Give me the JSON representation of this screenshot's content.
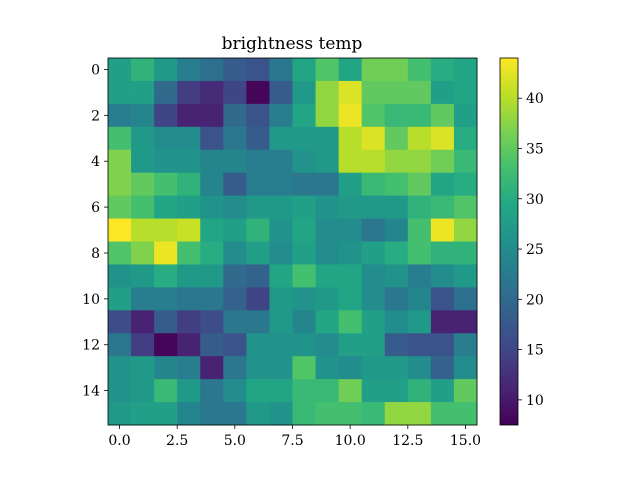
{
  "chart_data": {
    "type": "heatmap",
    "title": "brightness temp",
    "xlabel": "",
    "ylabel": "",
    "colormap": "viridis",
    "vmin": 7.5,
    "vmax": 44,
    "xlim": [
      -0.5,
      15.5
    ],
    "ylim": [
      15.5,
      -0.5
    ],
    "x_ticks": [
      0.0,
      2.5,
      5.0,
      7.5,
      10.0,
      12.5,
      15.0
    ],
    "x_tick_labels": [
      "0.0",
      "2.5",
      "5.0",
      "7.5",
      "10.0",
      "12.5",
      "15.0"
    ],
    "y_ticks": [
      0,
      2,
      4,
      6,
      8,
      10,
      12,
      14
    ],
    "y_tick_labels": [
      "0",
      "2",
      "4",
      "6",
      "8",
      "10",
      "12",
      "14"
    ],
    "colorbar_ticks": [
      10,
      15,
      20,
      25,
      30,
      35,
      40
    ],
    "colorbar_tick_labels": [
      "10",
      "15",
      "20",
      "25",
      "30",
      "35",
      "40"
    ],
    "values": [
      [
        28,
        31,
        27,
        23,
        21,
        18,
        17,
        22,
        29,
        34,
        29,
        36,
        36,
        33,
        30,
        29
      ],
      [
        28,
        28,
        20,
        14,
        12,
        15,
        8,
        18,
        27,
        38,
        42,
        35,
        35,
        35,
        28,
        29
      ],
      [
        23,
        24,
        15,
        11,
        11,
        20,
        17,
        23,
        29,
        38,
        43,
        34,
        32,
        32,
        35,
        28
      ],
      [
        33,
        27,
        25,
        25,
        17,
        22,
        18,
        27,
        27,
        27,
        40,
        42,
        35,
        40,
        42,
        30
      ],
      [
        37,
        27,
        26,
        26,
        24,
        24,
        23,
        23,
        26,
        27,
        40,
        40,
        38,
        38,
        36,
        32
      ],
      [
        37,
        35,
        33,
        31,
        24,
        18,
        23,
        23,
        22,
        22,
        28,
        32,
        33,
        35,
        29,
        30
      ],
      [
        35,
        33,
        29,
        28,
        26,
        25,
        27,
        27,
        28,
        26,
        27,
        27,
        27,
        31,
        32,
        34
      ],
      [
        44,
        40,
        40,
        41,
        29,
        28,
        31,
        26,
        29,
        25,
        25,
        22,
        24,
        33,
        43,
        38
      ],
      [
        34,
        37,
        43,
        33,
        30,
        25,
        28,
        25,
        28,
        25,
        26,
        28,
        30,
        33,
        31,
        31
      ],
      [
        26,
        27,
        30,
        27,
        27,
        20,
        19,
        29,
        33,
        29,
        29,
        25,
        26,
        23,
        25,
        27
      ],
      [
        28,
        23,
        23,
        22,
        22,
        19,
        15,
        27,
        26,
        27,
        29,
        25,
        22,
        24,
        17,
        21
      ],
      [
        16,
        11,
        18,
        14,
        16,
        22,
        22,
        27,
        24,
        29,
        33,
        28,
        25,
        27,
        11,
        11
      ],
      [
        22,
        14,
        8,
        11,
        18,
        17,
        26,
        26,
        26,
        25,
        28,
        28,
        18,
        17,
        17,
        23
      ],
      [
        26,
        27,
        24,
        23,
        11,
        22,
        26,
        26,
        34,
        26,
        25,
        27,
        27,
        25,
        19,
        25
      ],
      [
        26,
        27,
        32,
        27,
        22,
        25,
        29,
        29,
        32,
        32,
        36,
        28,
        28,
        31,
        28,
        35
      ],
      [
        27,
        28,
        28,
        24,
        22,
        22,
        27,
        26,
        32,
        33,
        33,
        32,
        38,
        38,
        33,
        33
      ]
    ]
  }
}
